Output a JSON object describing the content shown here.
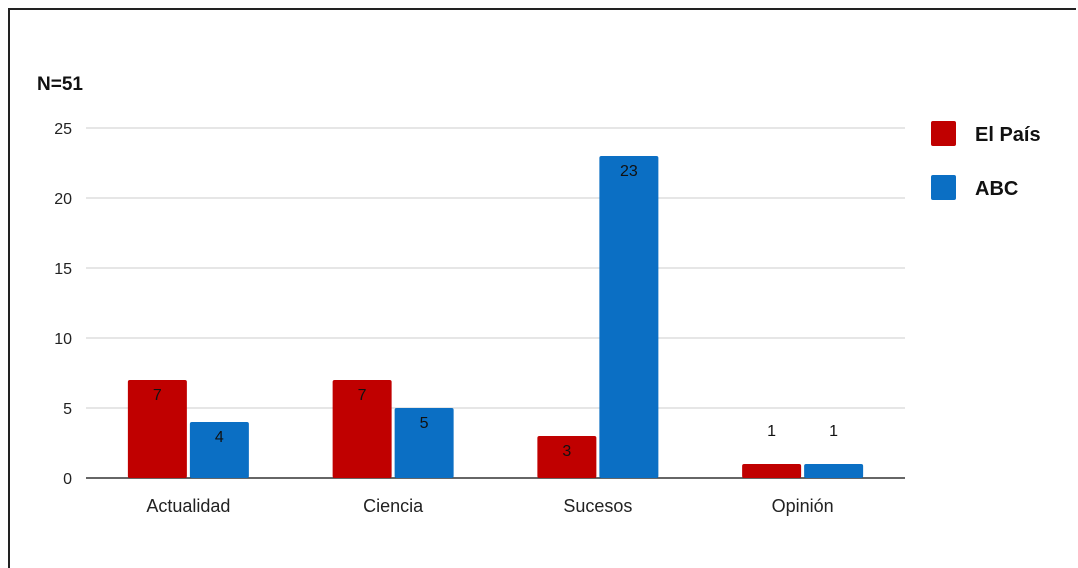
{
  "chart_data": {
    "type": "bar",
    "title": "N=51",
    "categories": [
      "Actualidad",
      "Ciencia",
      "Sucesos",
      "Opinión"
    ],
    "series": [
      {
        "name": "El País",
        "values": [
          7,
          7,
          3,
          1
        ],
        "color": "#c00000"
      },
      {
        "name": "ABC",
        "values": [
          4,
          5,
          23,
          1
        ],
        "color": "#0b6fc4"
      }
    ],
    "ylim": [
      0,
      25
    ],
    "yticks": [
      "0",
      "5",
      "10",
      "15",
      "20",
      "25"
    ],
    "grid": true,
    "legend_position": "right",
    "xlabel": "",
    "ylabel": ""
  }
}
